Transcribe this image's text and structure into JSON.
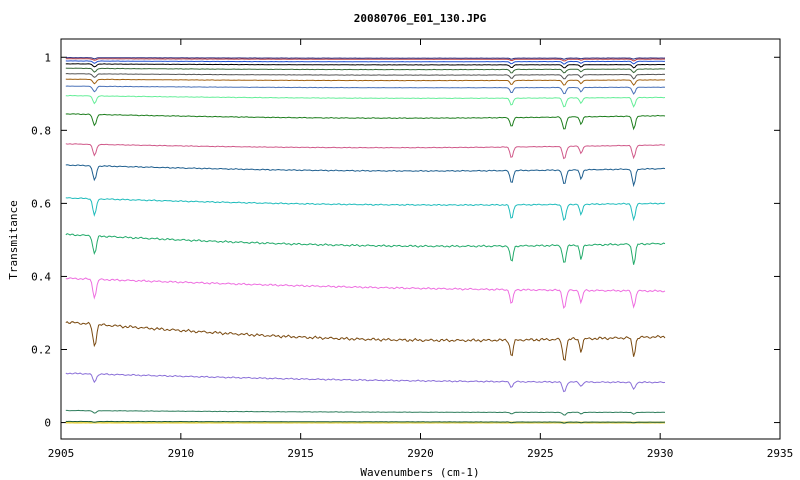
{
  "chart_data": {
    "type": "line",
    "title": "20080706_E01_130.JPG",
    "xlabel": "Wavenumbers (cm-1)",
    "ylabel": "Transmitance",
    "xlim": [
      2905,
      2935
    ],
    "ylim": [
      -0.045,
      1.05
    ],
    "x_ticks": [
      2905,
      2910,
      2915,
      2920,
      2925,
      2930,
      2935
    ],
    "x_tick_labels": [
      "2905",
      "2910",
      "2915",
      "2920",
      "2925",
      "2930",
      "2935"
    ],
    "y_ticks": [
      0,
      0.2,
      0.4,
      0.6,
      0.8,
      1
    ],
    "y_tick_labels": [
      "0",
      "0.2",
      "0.4",
      "0.6",
      "0.8",
      "1"
    ],
    "grid": false,
    "legend": "none",
    "x_range": [
      2905.2,
      2930.2
    ],
    "absorption_lines": [
      {
        "center": 2906.4,
        "width": 0.1
      },
      {
        "center": 2923.8,
        "width": 0.09
      },
      {
        "center": 2926.0,
        "width": 0.1
      },
      {
        "center": 2926.7,
        "width": 0.08
      },
      {
        "center": 2928.9,
        "width": 0.09
      }
    ],
    "series": [
      {
        "color": "#e8d44d",
        "start": 0.0,
        "end": 0.0,
        "min": 0.0,
        "depths": [
          0,
          0,
          0,
          0,
          0
        ]
      },
      {
        "color": "#1a5a3a",
        "start": 0.003,
        "end": 0.001,
        "min": 0.001,
        "depths": [
          0.002,
          0.002,
          0.003,
          0.002,
          0.002
        ]
      },
      {
        "color": "#2e7d5c",
        "start": 0.033,
        "end": 0.028,
        "min": 0.026,
        "depths": [
          0.007,
          0.004,
          0.008,
          0.004,
          0.005
        ]
      },
      {
        "color": "#8a6fd8",
        "start": 0.135,
        "end": 0.11,
        "min": 0.103,
        "depths": [
          0.022,
          0.015,
          0.028,
          0.012,
          0.02
        ]
      },
      {
        "color": "#7a4a10",
        "start": 0.275,
        "end": 0.235,
        "min": 0.205,
        "depths": [
          0.06,
          0.045,
          0.06,
          0.035,
          0.05
        ]
      },
      {
        "color": "#ee6ee0",
        "start": 0.395,
        "end": 0.36,
        "min": 0.352,
        "depths": [
          0.05,
          0.04,
          0.05,
          0.035,
          0.045
        ]
      },
      {
        "color": "#22aa6a",
        "start": 0.515,
        "end": 0.49,
        "min": 0.47,
        "depths": [
          0.05,
          0.045,
          0.05,
          0.04,
          0.055
        ]
      },
      {
        "color": "#1fbcbc",
        "start": 0.615,
        "end": 0.6,
        "min": 0.588,
        "depths": [
          0.045,
          0.04,
          0.045,
          0.03,
          0.045
        ]
      },
      {
        "color": "#1f5f8f",
        "start": 0.705,
        "end": 0.695,
        "min": 0.683,
        "depths": [
          0.04,
          0.035,
          0.04,
          0.025,
          0.045
        ]
      },
      {
        "color": "#d05a8a",
        "start": 0.763,
        "end": 0.76,
        "min": 0.75,
        "depths": [
          0.03,
          0.03,
          0.035,
          0.02,
          0.035
        ]
      },
      {
        "color": "#1e7e1e",
        "start": 0.845,
        "end": 0.84,
        "min": 0.83,
        "depths": [
          0.03,
          0.025,
          0.035,
          0.02,
          0.035
        ]
      },
      {
        "color": "#66ee99",
        "start": 0.895,
        "end": 0.89,
        "min": 0.885,
        "depths": [
          0.02,
          0.02,
          0.025,
          0.015,
          0.025
        ]
      },
      {
        "color": "#4a72b8",
        "start": 0.921,
        "end": 0.918,
        "min": 0.915,
        "depths": [
          0.015,
          0.015,
          0.018,
          0.012,
          0.018
        ]
      },
      {
        "color": "#a06010",
        "start": 0.94,
        "end": 0.938,
        "min": 0.935,
        "depths": [
          0.012,
          0.012,
          0.014,
          0.01,
          0.014
        ]
      },
      {
        "color": "#555555",
        "start": 0.955,
        "end": 0.953,
        "min": 0.95,
        "depths": [
          0.01,
          0.01,
          0.012,
          0.008,
          0.012
        ]
      },
      {
        "color": "#3a6a3a",
        "start": 0.97,
        "end": 0.968,
        "min": 0.965,
        "depths": [
          0.01,
          0.01,
          0.01,
          0.007,
          0.01
        ]
      },
      {
        "color": "#000000",
        "start": 0.982,
        "end": 0.98,
        "min": 0.978,
        "depths": [
          0.008,
          0.008,
          0.009,
          0.006,
          0.009
        ]
      },
      {
        "color": "#2050d0",
        "start": 0.99,
        "end": 0.989,
        "min": 0.987,
        "depths": [
          0.006,
          0.006,
          0.007,
          0.005,
          0.007
        ]
      },
      {
        "color": "#c04040",
        "start": 0.996,
        "end": 0.995,
        "min": 0.994,
        "depths": [
          0.004,
          0.004,
          0.005,
          0.003,
          0.005
        ]
      },
      {
        "color": "#303080",
        "start": 0.999,
        "end": 0.998,
        "min": 0.997,
        "depths": [
          0.003,
          0.003,
          0.003,
          0.002,
          0.003
        ]
      }
    ]
  }
}
